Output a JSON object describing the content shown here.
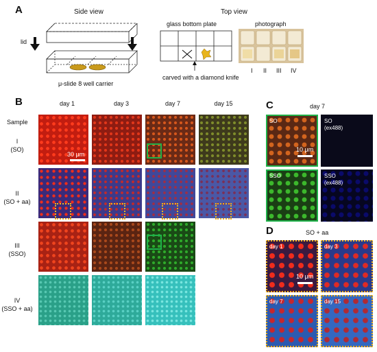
{
  "panel_a": {
    "letter": "A",
    "side_view_title": "Side view",
    "lid_label": "lid",
    "carrier_caption": "μ-slide 8 well carrier",
    "top_view_title": "Top view",
    "plate_title": "glass bottom plate",
    "photo_title": "photograph",
    "knife_caption": "carved with a diamond knife",
    "photo_labels": [
      "I",
      "II",
      "III",
      "IV"
    ]
  },
  "panel_b": {
    "letter": "B",
    "columns": [
      "day 1",
      "day 3",
      "day 7",
      "day 15"
    ],
    "sample_header": "Sample",
    "rows": [
      {
        "id": "I",
        "name": "(SO)"
      },
      {
        "id": "II",
        "name": "(SO + aa)"
      },
      {
        "id": "III",
        "name": "(SSO)"
      },
      {
        "id": "IV",
        "name": "(SSO + aa)"
      }
    ],
    "scale_bar": "30 μm"
  },
  "panel_c": {
    "letter": "C",
    "title": "day 7",
    "cells": [
      "SO",
      "SO\n(ex488)",
      "SSO",
      "SSO\n(ex488)"
    ],
    "scale_bar": "10 μm"
  },
  "panel_d": {
    "letter": "D",
    "title": "SO + aa",
    "cells": [
      "day 1",
      "day 3",
      "day 7",
      "day 15"
    ],
    "scale_bar": "10 μm"
  }
}
